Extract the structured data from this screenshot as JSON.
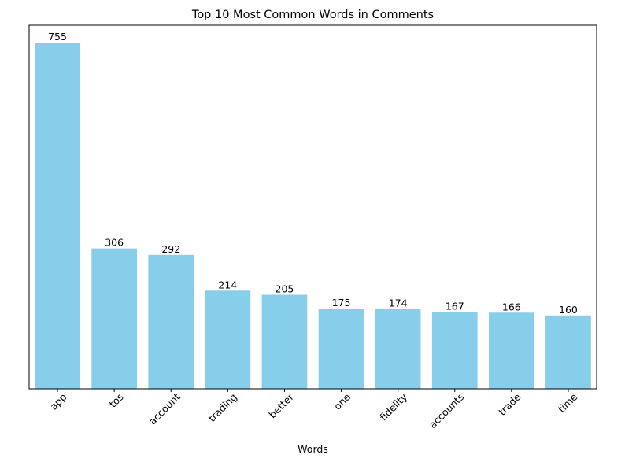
{
  "chart_data": {
    "type": "bar",
    "title": "Top 10 Most Common Words in Comments",
    "xlabel": "Words",
    "ylabel": "",
    "categories": [
      "app",
      "tos",
      "account",
      "trading",
      "better",
      "one",
      "fidelity",
      "accounts",
      "trade",
      "time"
    ],
    "values": [
      755,
      306,
      292,
      214,
      205,
      175,
      174,
      167,
      166,
      160
    ],
    "ylim": [
      0,
      792.75
    ],
    "y_axis_visible": false,
    "grid": false,
    "legend": "none",
    "bar_color": "#87CEEB",
    "tick_label_rotation": 45
  }
}
